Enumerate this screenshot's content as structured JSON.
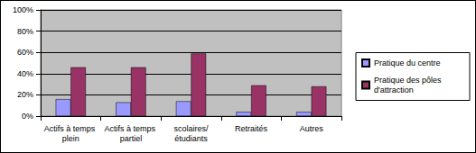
{
  "chart_data": {
    "type": "bar",
    "categories": [
      "Actifs à temps plein",
      "Actifs à temps partiel",
      "scolaires/étudiants",
      "Retraités",
      "Autres"
    ],
    "series": [
      {
        "name": "Pratique du centre",
        "color": "#9999ff",
        "values": [
          16,
          13,
          14,
          4,
          4
        ]
      },
      {
        "name": "Pratique des pôles d'attraction",
        "color": "#993366",
        "values": [
          46,
          46,
          59,
          29,
          28
        ]
      }
    ],
    "ylim": [
      0,
      100
    ],
    "yticks": [
      {
        "value": 0,
        "label": "0%"
      },
      {
        "value": 20,
        "label": "20%"
      },
      {
        "value": 40,
        "label": "40%"
      },
      {
        "value": 60,
        "label": "60%"
      },
      {
        "value": 80,
        "label": "80%"
      },
      {
        "value": 100,
        "label": "100%"
      }
    ],
    "grid": true,
    "legend": "right"
  }
}
